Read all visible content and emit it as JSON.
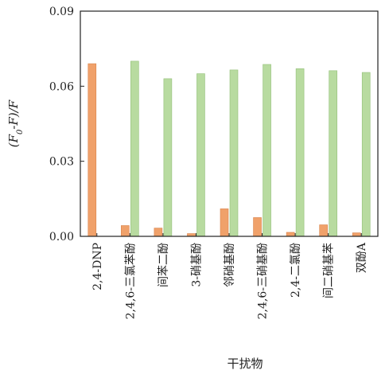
{
  "chart_data": {
    "type": "bar",
    "title": "",
    "xlabel": "干扰物",
    "ylabel": "(F0-F)/F",
    "ylim": [
      0,
      0.09
    ],
    "yticks": [
      "0.00",
      "0.03",
      "0.06",
      "0.09"
    ],
    "grid": false,
    "legend": "none",
    "categories": [
      "2,4-DNP",
      "2,4,6-三氯苯酚",
      "间苯二酚",
      "3-硝基酚",
      "邻硝基酚",
      "2,4,6-三硝基酚",
      "2,4-二氯酚",
      "间二硝基苯",
      "双酚A"
    ],
    "series": [
      {
        "color": "#f0a16a",
        "values": [
          0.069,
          0.0043,
          0.0033,
          0.0011,
          0.011,
          0.0075,
          0.0016,
          0.0046,
          0.0014
        ]
      },
      {
        "color": "#b8dba0",
        "values": [
          0.0,
          0.07,
          0.063,
          0.065,
          0.0665,
          0.0687,
          0.067,
          0.0662,
          0.0655
        ]
      }
    ]
  }
}
